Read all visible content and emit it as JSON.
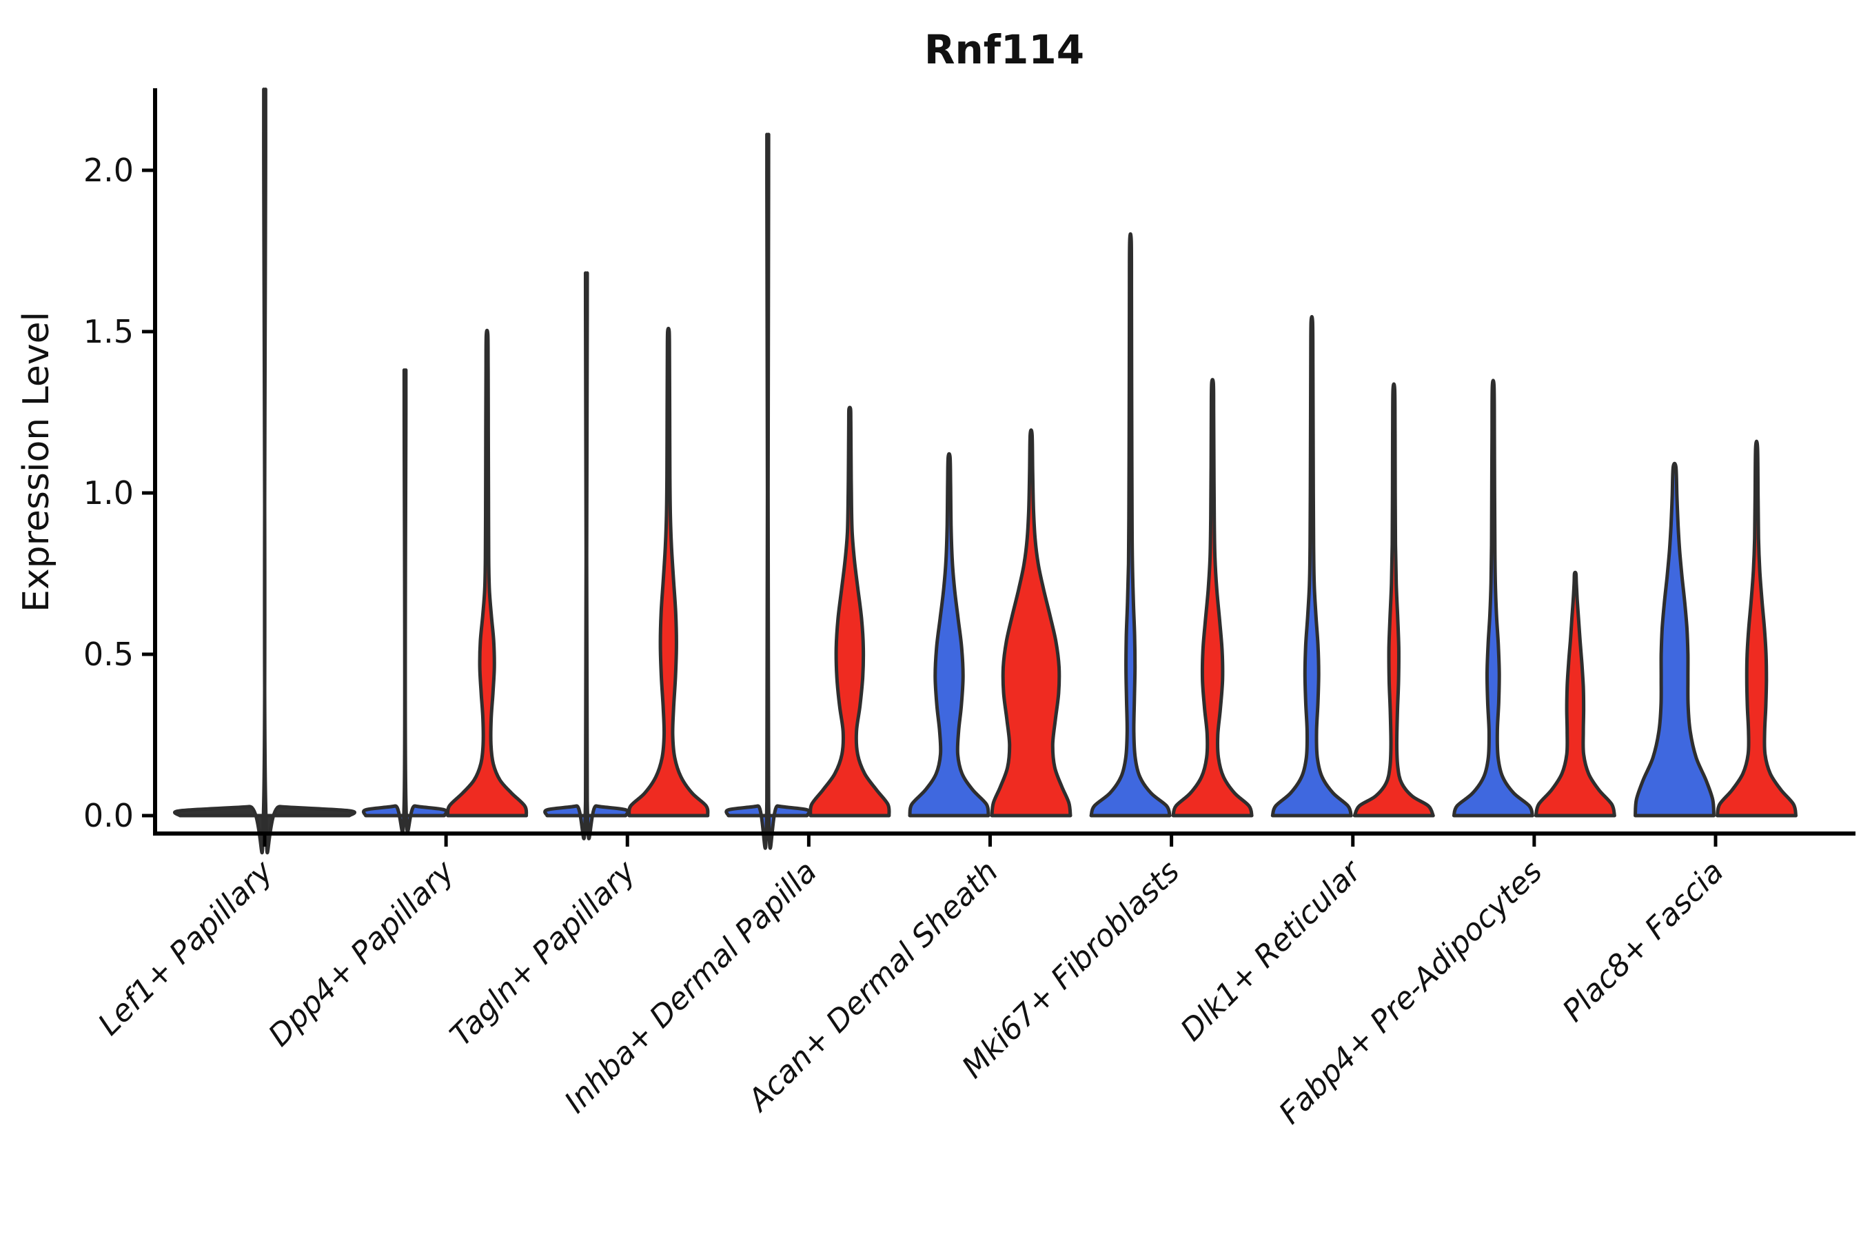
{
  "title": "Rnf114",
  "ylabel": "Expression Level",
  "colors": {
    "blue": "#3F68DF",
    "red": "#EF2B21",
    "flat": "#333333",
    "outline": "#2E2E2E",
    "axis": "#000000"
  },
  "chart_data": {
    "type": "violin",
    "title": "Rnf114",
    "xlabel": "",
    "ylabel": "Expression Level",
    "ylim": [
      -0.06,
      2.26
    ],
    "grid": false,
    "legend": "none",
    "yticks": {
      "values": [
        0.0,
        0.5,
        1.0,
        1.5,
        2.0
      ],
      "labels": [
        "0.0",
        "0.5",
        "1.0",
        "1.5",
        "2.0"
      ]
    },
    "categories": [
      "Lef1+ Papillary",
      "Dpp4+ Papillary",
      "Tagln+ Papillary",
      "Inhba+ Dermal Papilla",
      "Acan+ Dermal Sheath",
      "Mki67+ Fibroblasts",
      "Dlk1+ Reticular",
      "Fabp4+ Pre-Adipocytes",
      "Plac8+ Fascia"
    ],
    "split_groups": [
      "blue",
      "red"
    ],
    "violins": [
      {
        "category": "Lef1+ Papillary",
        "split": "single",
        "fill": "flat",
        "span": "full",
        "max": 2.12,
        "profile": [
          [
            0,
            1.0
          ],
          [
            0.015,
            1.0
          ],
          [
            0.028,
            0.18
          ],
          [
            0.04,
            0.011
          ],
          [
            2.09,
            0.011
          ],
          [
            2.12,
            0.009
          ]
        ]
      },
      {
        "category": "Dpp4+ Papillary",
        "split": "blue",
        "fill": "blue",
        "span": "half",
        "max": 1.31,
        "profile": [
          [
            0,
            1.0
          ],
          [
            0.018,
            1.0
          ],
          [
            0.03,
            0.25
          ],
          [
            0.045,
            0.022
          ],
          [
            1.28,
            0.022
          ],
          [
            1.31,
            0.018
          ]
        ]
      },
      {
        "category": "Dpp4+ Papillary",
        "split": "red",
        "fill": "red",
        "span": "half",
        "max": 1.49,
        "profile": [
          [
            0,
            1.0
          ],
          [
            0.03,
            0.96
          ],
          [
            0.07,
            0.62
          ],
          [
            0.11,
            0.33
          ],
          [
            0.16,
            0.16
          ],
          [
            0.22,
            0.1
          ],
          [
            0.3,
            0.105
          ],
          [
            0.38,
            0.15
          ],
          [
            0.46,
            0.185
          ],
          [
            0.54,
            0.17
          ],
          [
            0.62,
            0.11
          ],
          [
            0.7,
            0.06
          ],
          [
            0.8,
            0.042
          ],
          [
            1.0,
            0.036
          ],
          [
            1.2,
            0.032
          ],
          [
            1.38,
            0.027
          ],
          [
            1.49,
            0.02
          ]
        ]
      },
      {
        "category": "Tagln+ Papillary",
        "split": "blue",
        "fill": "blue",
        "span": "half",
        "max": 1.59,
        "profile": [
          [
            0,
            1.0
          ],
          [
            0.018,
            1.0
          ],
          [
            0.03,
            0.25
          ],
          [
            0.045,
            0.022
          ],
          [
            1.56,
            0.022
          ],
          [
            1.59,
            0.018
          ]
        ]
      },
      {
        "category": "Tagln+ Papillary",
        "split": "red",
        "fill": "red",
        "span": "half",
        "max": 1.5,
        "profile": [
          [
            0,
            1.0
          ],
          [
            0.03,
            0.96
          ],
          [
            0.07,
            0.6
          ],
          [
            0.12,
            0.32
          ],
          [
            0.18,
            0.16
          ],
          [
            0.25,
            0.11
          ],
          [
            0.33,
            0.13
          ],
          [
            0.43,
            0.18
          ],
          [
            0.53,
            0.205
          ],
          [
            0.63,
            0.185
          ],
          [
            0.73,
            0.13
          ],
          [
            0.83,
            0.08
          ],
          [
            0.93,
            0.05
          ],
          [
            1.05,
            0.038
          ],
          [
            1.25,
            0.032
          ],
          [
            1.42,
            0.027
          ],
          [
            1.5,
            0.02
          ]
        ]
      },
      {
        "category": "Inhba+ Dermal Papilla",
        "split": "blue",
        "fill": "blue",
        "span": "half",
        "max": 1.99,
        "profile": [
          [
            0,
            1.0
          ],
          [
            0.018,
            1.0
          ],
          [
            0.03,
            0.25
          ],
          [
            0.045,
            0.022
          ],
          [
            1.96,
            0.022
          ],
          [
            1.99,
            0.018
          ]
        ]
      },
      {
        "category": "Inhba+ Dermal Papilla",
        "split": "red",
        "fill": "red",
        "span": "half",
        "max": 1.26,
        "profile": [
          [
            0,
            1.0
          ],
          [
            0.035,
            0.97
          ],
          [
            0.08,
            0.68
          ],
          [
            0.13,
            0.38
          ],
          [
            0.19,
            0.2
          ],
          [
            0.26,
            0.17
          ],
          [
            0.34,
            0.26
          ],
          [
            0.43,
            0.33
          ],
          [
            0.52,
            0.345
          ],
          [
            0.61,
            0.3
          ],
          [
            0.7,
            0.21
          ],
          [
            0.79,
            0.12
          ],
          [
            0.88,
            0.06
          ],
          [
            1.0,
            0.04
          ],
          [
            1.12,
            0.032
          ],
          [
            1.22,
            0.026
          ],
          [
            1.26,
            0.02
          ]
        ]
      },
      {
        "category": "Acan+ Dermal Sheath",
        "split": "blue",
        "fill": "blue",
        "span": "half",
        "max": 1.11,
        "profile": [
          [
            0,
            1.0
          ],
          [
            0.035,
            0.95
          ],
          [
            0.08,
            0.6
          ],
          [
            0.13,
            0.33
          ],
          [
            0.19,
            0.22
          ],
          [
            0.26,
            0.24
          ],
          [
            0.34,
            0.31
          ],
          [
            0.43,
            0.355
          ],
          [
            0.52,
            0.32
          ],
          [
            0.61,
            0.23
          ],
          [
            0.7,
            0.14
          ],
          [
            0.79,
            0.08
          ],
          [
            0.9,
            0.05
          ],
          [
            1.02,
            0.038
          ],
          [
            1.11,
            0.025
          ]
        ]
      },
      {
        "category": "Acan+ Dermal Sheath",
        "split": "red",
        "fill": "red",
        "span": "half",
        "max": 1.18,
        "profile": [
          [
            0,
            1.0
          ],
          [
            0.04,
            0.96
          ],
          [
            0.09,
            0.78
          ],
          [
            0.15,
            0.6
          ],
          [
            0.22,
            0.55
          ],
          [
            0.3,
            0.62
          ],
          [
            0.38,
            0.7
          ],
          [
            0.46,
            0.71
          ],
          [
            0.54,
            0.63
          ],
          [
            0.62,
            0.48
          ],
          [
            0.7,
            0.32
          ],
          [
            0.78,
            0.18
          ],
          [
            0.86,
            0.1
          ],
          [
            0.95,
            0.06
          ],
          [
            1.06,
            0.04
          ],
          [
            1.18,
            0.025
          ]
        ]
      },
      {
        "category": "Mki67+ Fibroblasts",
        "split": "blue",
        "fill": "blue",
        "span": "half",
        "max": 1.78,
        "profile": [
          [
            0,
            1.0
          ],
          [
            0.03,
            0.92
          ],
          [
            0.07,
            0.52
          ],
          [
            0.12,
            0.24
          ],
          [
            0.18,
            0.12
          ],
          [
            0.26,
            0.085
          ],
          [
            0.36,
            0.1
          ],
          [
            0.46,
            0.115
          ],
          [
            0.56,
            0.105
          ],
          [
            0.66,
            0.075
          ],
          [
            0.78,
            0.05
          ],
          [
            0.92,
            0.04
          ],
          [
            1.1,
            0.035
          ],
          [
            1.35,
            0.03
          ],
          [
            1.6,
            0.026
          ],
          [
            1.78,
            0.02
          ]
        ]
      },
      {
        "category": "Mki67+ Fibroblasts",
        "split": "red",
        "fill": "red",
        "span": "half",
        "max": 1.34,
        "profile": [
          [
            0,
            1.0
          ],
          [
            0.03,
            0.93
          ],
          [
            0.07,
            0.56
          ],
          [
            0.12,
            0.28
          ],
          [
            0.18,
            0.15
          ],
          [
            0.25,
            0.135
          ],
          [
            0.33,
            0.2
          ],
          [
            0.42,
            0.255
          ],
          [
            0.51,
            0.245
          ],
          [
            0.6,
            0.185
          ],
          [
            0.7,
            0.11
          ],
          [
            0.8,
            0.062
          ],
          [
            0.92,
            0.045
          ],
          [
            1.08,
            0.036
          ],
          [
            1.25,
            0.03
          ],
          [
            1.34,
            0.022
          ]
        ]
      },
      {
        "category": "Dlk1+ Reticular",
        "split": "blue",
        "fill": "blue",
        "span": "half",
        "max": 1.53,
        "profile": [
          [
            0,
            1.0
          ],
          [
            0.03,
            0.92
          ],
          [
            0.07,
            0.54
          ],
          [
            0.12,
            0.26
          ],
          [
            0.18,
            0.14
          ],
          [
            0.26,
            0.12
          ],
          [
            0.35,
            0.155
          ],
          [
            0.44,
            0.175
          ],
          [
            0.53,
            0.155
          ],
          [
            0.62,
            0.105
          ],
          [
            0.72,
            0.06
          ],
          [
            0.84,
            0.045
          ],
          [
            1.0,
            0.038
          ],
          [
            1.2,
            0.032
          ],
          [
            1.4,
            0.027
          ],
          [
            1.53,
            0.02
          ]
        ]
      },
      {
        "category": "Dlk1+ Reticular",
        "split": "red",
        "fill": "red",
        "span": "half",
        "max": 1.32,
        "profile": [
          [
            0,
            1.0
          ],
          [
            0.03,
            0.88
          ],
          [
            0.06,
            0.47
          ],
          [
            0.1,
            0.2
          ],
          [
            0.15,
            0.1
          ],
          [
            0.22,
            0.075
          ],
          [
            0.32,
            0.09
          ],
          [
            0.42,
            0.12
          ],
          [
            0.52,
            0.125
          ],
          [
            0.62,
            0.095
          ],
          [
            0.72,
            0.06
          ],
          [
            0.84,
            0.042
          ],
          [
            1.0,
            0.035
          ],
          [
            1.18,
            0.03
          ],
          [
            1.32,
            0.022
          ]
        ]
      },
      {
        "category": "Fabp4+ Pre-Adipocytes",
        "split": "blue",
        "fill": "blue",
        "span": "half",
        "max": 1.33,
        "profile": [
          [
            0,
            1.0
          ],
          [
            0.03,
            0.92
          ],
          [
            0.07,
            0.52
          ],
          [
            0.12,
            0.24
          ],
          [
            0.18,
            0.125
          ],
          [
            0.26,
            0.105
          ],
          [
            0.35,
            0.14
          ],
          [
            0.44,
            0.155
          ],
          [
            0.53,
            0.13
          ],
          [
            0.62,
            0.085
          ],
          [
            0.72,
            0.055
          ],
          [
            0.84,
            0.042
          ],
          [
            1.0,
            0.036
          ],
          [
            1.18,
            0.03
          ],
          [
            1.33,
            0.022
          ]
        ]
      },
      {
        "category": "Fabp4+ Pre-Adipocytes",
        "split": "red",
        "fill": "red",
        "span": "half",
        "max": 0.75,
        "profile": [
          [
            0,
            1.0
          ],
          [
            0.035,
            0.93
          ],
          [
            0.08,
            0.6
          ],
          [
            0.13,
            0.34
          ],
          [
            0.19,
            0.215
          ],
          [
            0.26,
            0.205
          ],
          [
            0.33,
            0.215
          ],
          [
            0.4,
            0.205
          ],
          [
            0.47,
            0.17
          ],
          [
            0.54,
            0.125
          ],
          [
            0.61,
            0.085
          ],
          [
            0.67,
            0.05
          ],
          [
            0.72,
            0.028
          ],
          [
            0.75,
            0.018
          ]
        ]
      },
      {
        "category": "Plac8+ Fascia",
        "split": "blue",
        "fill": "blue",
        "span": "half",
        "max": 1.08,
        "profile": [
          [
            0,
            1.0
          ],
          [
            0.05,
            0.97
          ],
          [
            0.11,
            0.8
          ],
          [
            0.18,
            0.55
          ],
          [
            0.26,
            0.4
          ],
          [
            0.34,
            0.345
          ],
          [
            0.42,
            0.34
          ],
          [
            0.5,
            0.34
          ],
          [
            0.58,
            0.315
          ],
          [
            0.66,
            0.26
          ],
          [
            0.74,
            0.19
          ],
          [
            0.82,
            0.13
          ],
          [
            0.9,
            0.09
          ],
          [
            0.99,
            0.06
          ],
          [
            1.08,
            0.035
          ]
        ]
      },
      {
        "category": "Plac8+ Fascia",
        "split": "red",
        "fill": "red",
        "span": "half",
        "max": 1.14,
        "profile": [
          [
            0,
            1.0
          ],
          [
            0.035,
            0.94
          ],
          [
            0.08,
            0.62
          ],
          [
            0.13,
            0.35
          ],
          [
            0.19,
            0.215
          ],
          [
            0.26,
            0.205
          ],
          [
            0.34,
            0.235
          ],
          [
            0.42,
            0.25
          ],
          [
            0.5,
            0.24
          ],
          [
            0.58,
            0.2
          ],
          [
            0.67,
            0.135
          ],
          [
            0.76,
            0.08
          ],
          [
            0.86,
            0.05
          ],
          [
            0.98,
            0.038
          ],
          [
            1.14,
            0.024
          ]
        ]
      }
    ]
  }
}
